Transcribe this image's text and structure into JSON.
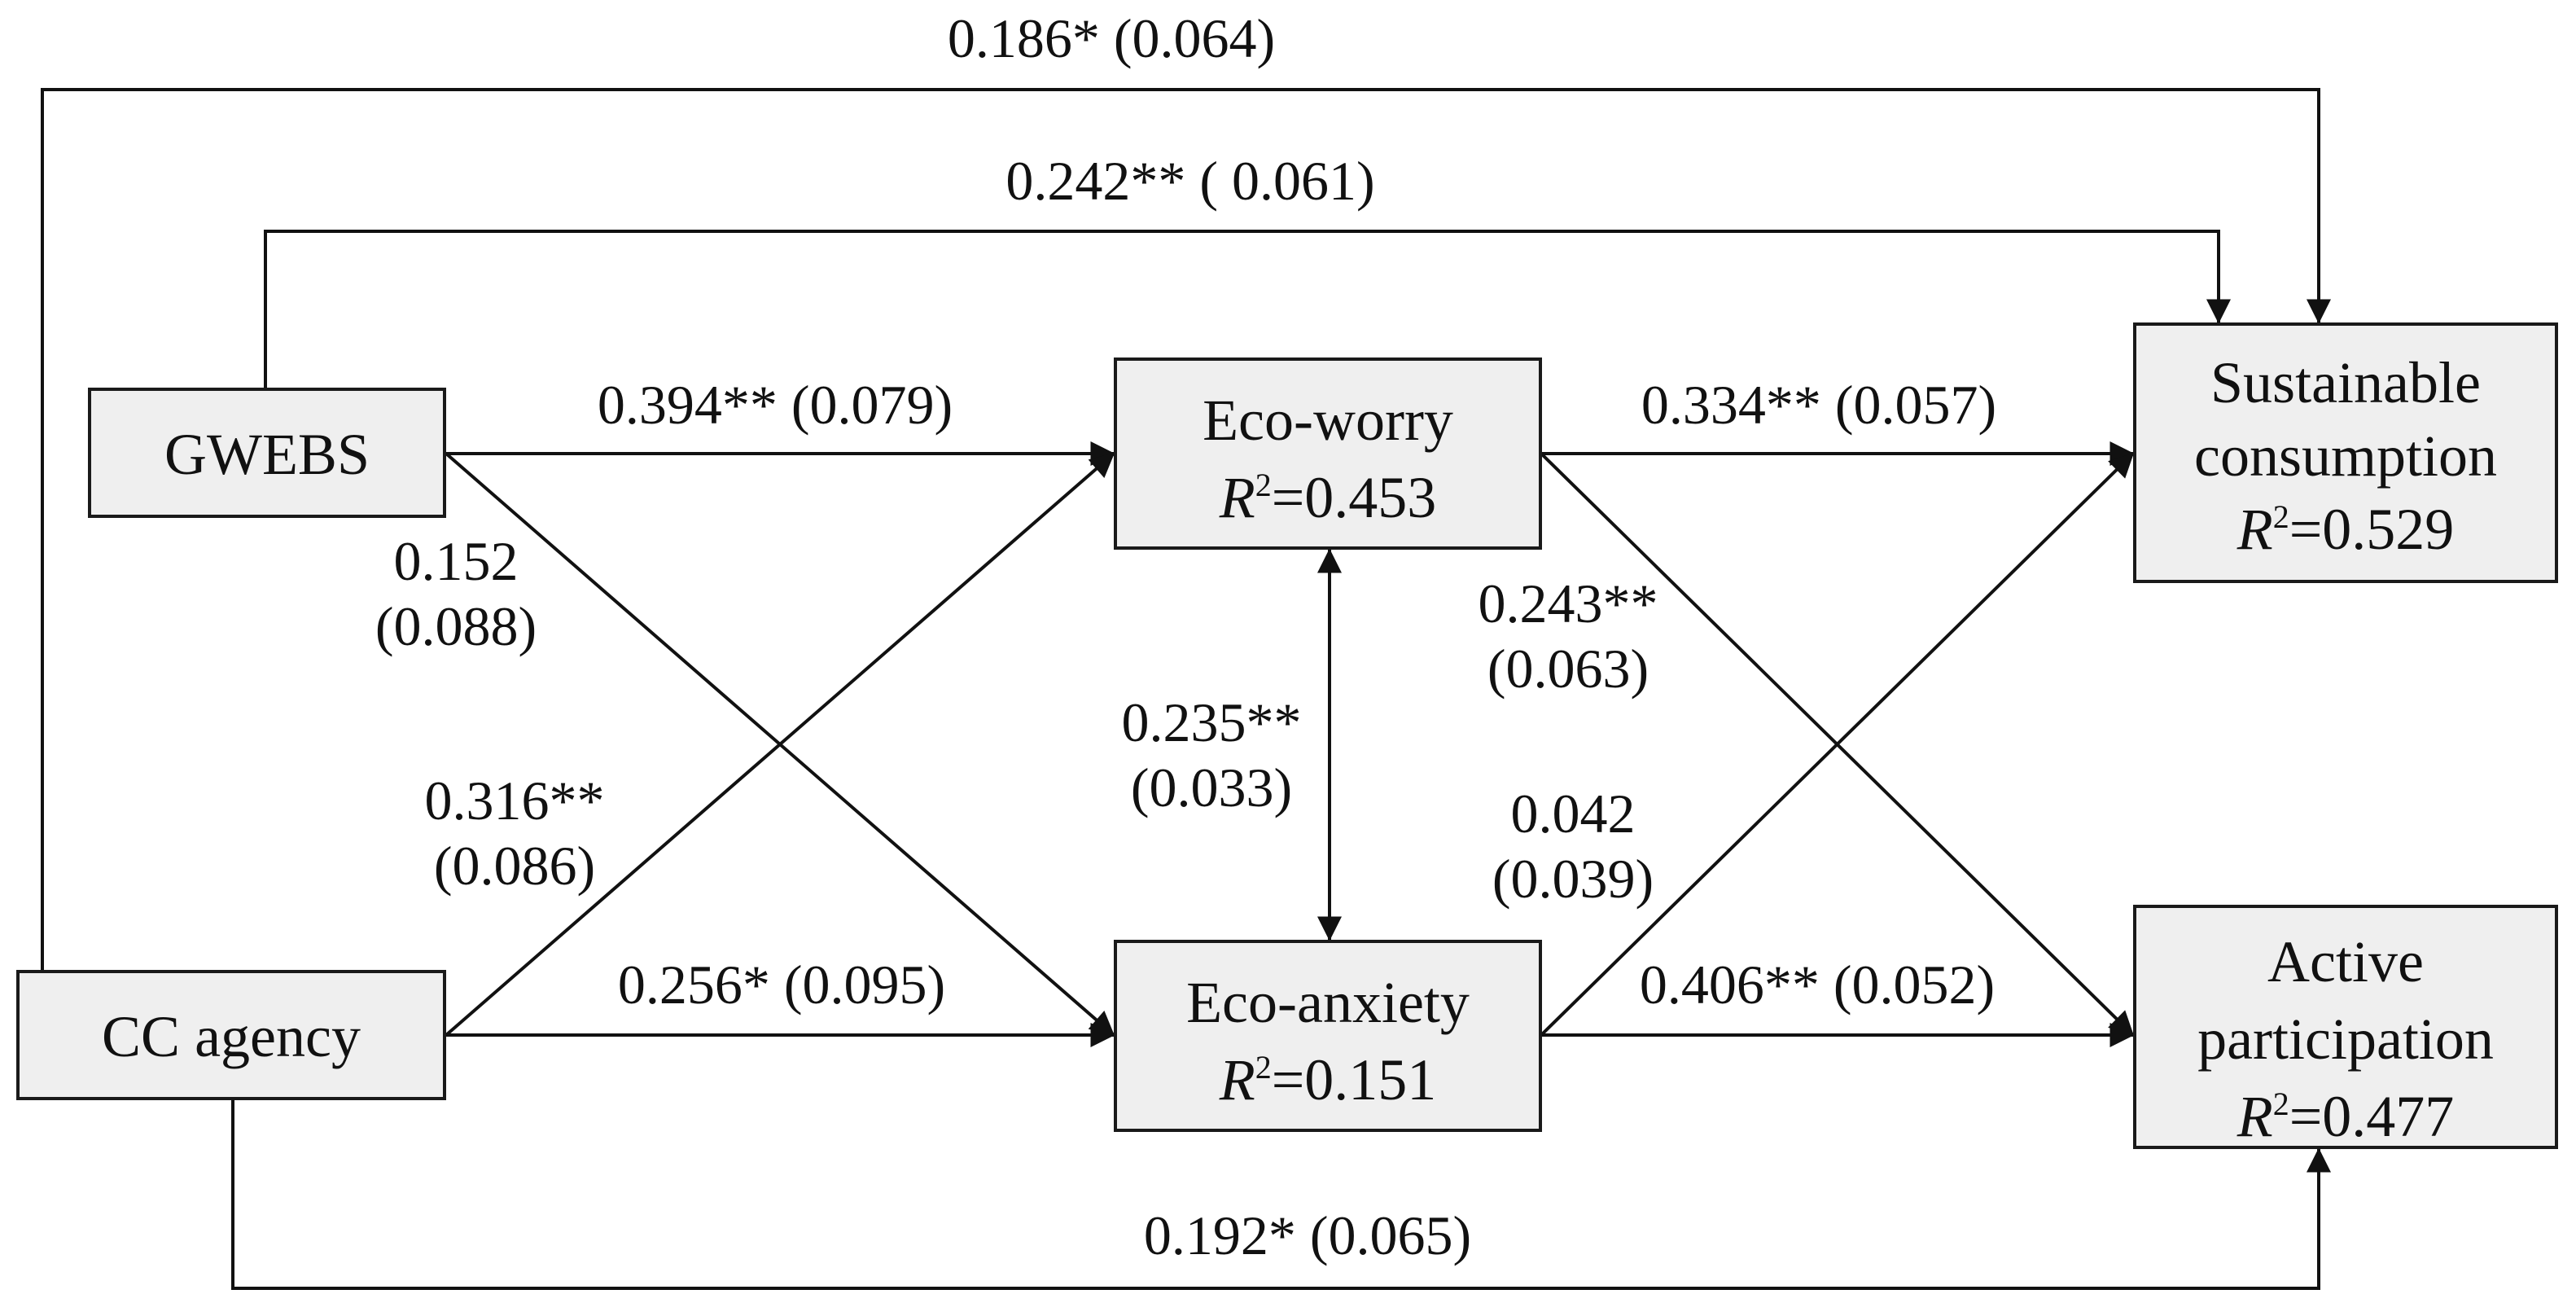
{
  "nodes": {
    "gwebs": {
      "label": "GWEBS"
    },
    "cc_agency": {
      "label": "CC agency"
    },
    "eco_worry": {
      "label": "Eco-worry",
      "r2_symbol": "R",
      "r2_sup": "2",
      "r2_value": "=0.453"
    },
    "eco_anxiety": {
      "label": "Eco-anxiety",
      "r2_symbol": "R",
      "r2_sup": "2",
      "r2_value": "=0.151"
    },
    "sustainable": {
      "label_line1": "Sustainable",
      "label_line2": "consumption",
      "r2_symbol": "R",
      "r2_sup": "2",
      "r2_value": "=0.529"
    },
    "active": {
      "label_line1": "Active",
      "label_line2": "participation",
      "r2_symbol": "R",
      "r2_sup": "2",
      "r2_value": "=0.477"
    }
  },
  "edges": {
    "cc_to_sustainable": "0.186* (0.064)",
    "gwebs_to_sustainable": "0.242** ( 0.061)",
    "gwebs_to_worry": "0.394** (0.079)",
    "gwebs_to_anxiety_line1": "0.152",
    "gwebs_to_anxiety_line2": "(0.088)",
    "cc_to_worry_line1": "0.316**",
    "cc_to_worry_line2": "(0.086)",
    "cc_to_anxiety": "0.256* (0.095)",
    "worry_anxiety_line1": "0.235**",
    "worry_anxiety_line2": "(0.033)",
    "worry_to_sustainable": "0.334** (0.057)",
    "worry_to_active_line1": "0.243**",
    "worry_to_active_line2": "(0.063)",
    "anxiety_to_sustainable_line1": "0.042",
    "anxiety_to_sustainable_line2": "(0.039)",
    "anxiety_to_active": "0.406** (0.052)",
    "cc_to_active": "0.192* (0.065)"
  }
}
